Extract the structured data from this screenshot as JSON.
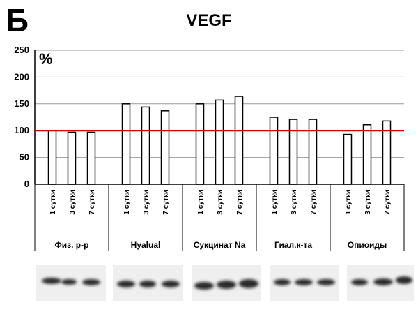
{
  "panel_label": "Б",
  "chart_data": {
    "type": "bar",
    "title": "VEGF",
    "ylabel": "%",
    "xlabel": "",
    "ylim": [
      0,
      250
    ],
    "yticks": [
      0,
      50,
      100,
      150,
      200,
      250
    ],
    "grid": true,
    "reference_line": {
      "value": 100,
      "color": "#cc0000"
    },
    "groups": [
      {
        "name": "Физ. р-р",
        "categories": [
          "1 сутки",
          "3 сутки",
          "7 сутки"
        ],
        "values": [
          100,
          97,
          97
        ]
      },
      {
        "name": "Hyalual",
        "categories": [
          "1 сутки",
          "3 сутки",
          "7 сутки"
        ],
        "values": [
          150,
          144,
          137
        ]
      },
      {
        "name": "Сукцинат Na",
        "categories": [
          "1 сутки",
          "3 сутки",
          "7 сутки"
        ],
        "values": [
          150,
          157,
          164
        ]
      },
      {
        "name": "Гиал.к-та",
        "categories": [
          "1 сутки",
          "3 сутки",
          "7 сутки"
        ],
        "values": [
          125,
          121,
          121
        ]
      },
      {
        "name": "Опиоиды",
        "categories": [
          "1 сутки",
          "3 сутки",
          "7 сутки"
        ],
        "values": [
          93,
          111,
          118
        ]
      }
    ],
    "bar_color": "#ffffff",
    "bar_edge_color": "#000000"
  }
}
